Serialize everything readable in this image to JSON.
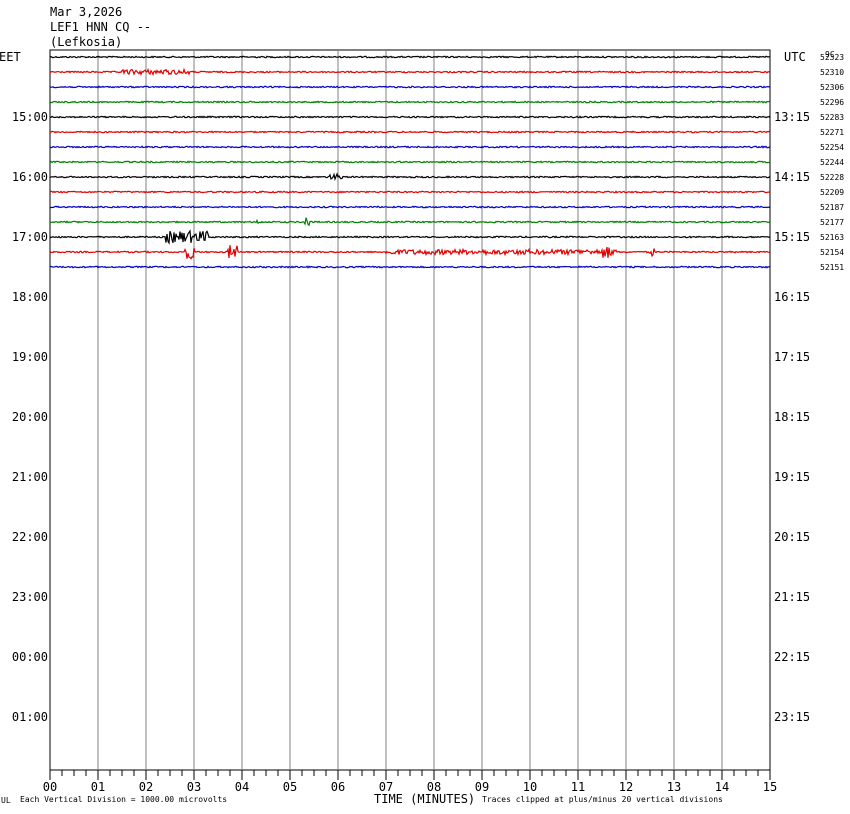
{
  "header": {
    "date": "Mar 3,2026",
    "station": "LEF1 HNN CQ --",
    "location": "(Lefkosia)"
  },
  "left_zone_label": "EET",
  "right_zone_label": "UTC",
  "corner_label": "9C",
  "footer": {
    "scale_note": "Each Vertical Division = 1000.00 microvolts",
    "axis_title": "TIME (MINUTES)",
    "clip_note": "Traces clipped at plus/minus 20 vertical divisions",
    "logo_mark": "UL"
  },
  "chart_data": {
    "type": "line",
    "title": "LEF1 HNN CQ --",
    "xlabel": "TIME (MINUTES)",
    "xlim": [
      0,
      15
    ],
    "x_ticks": [
      "00",
      "01",
      "02",
      "03",
      "04",
      "05",
      "06",
      "07",
      "08",
      "09",
      "10",
      "11",
      "12",
      "13",
      "14",
      "15"
    ],
    "left_hour_labels": [
      "15:00",
      "16:00",
      "17:00",
      "18:00",
      "19:00",
      "20:00",
      "21:00",
      "22:00",
      "23:00",
      "00:00",
      "01:00"
    ],
    "right_hour_labels": [
      "13:15",
      "14:15",
      "15:15",
      "16:15",
      "17:15",
      "18:15",
      "19:15",
      "20:15",
      "21:15",
      "22:15",
      "23:15"
    ],
    "trace_colors": [
      "#000000",
      "#e00000",
      "#0000c0",
      "#008000"
    ],
    "traces": [
      {
        "offset": "52323",
        "color": "#000000"
      },
      {
        "offset": "52310",
        "color": "#e00000"
      },
      {
        "offset": "52306",
        "color": "#0000c0"
      },
      {
        "offset": "52296",
        "color": "#008000"
      },
      {
        "offset": "52283",
        "color": "#000000"
      },
      {
        "offset": "52271",
        "color": "#e00000"
      },
      {
        "offset": "52254",
        "color": "#0000c0"
      },
      {
        "offset": "52244",
        "color": "#008000"
      },
      {
        "offset": "52228",
        "color": "#000000"
      },
      {
        "offset": "52209",
        "color": "#e00000"
      },
      {
        "offset": "52187",
        "color": "#0000c0"
      },
      {
        "offset": "52177",
        "color": "#008000"
      },
      {
        "offset": "52163",
        "color": "#000000"
      },
      {
        "offset": "52154",
        "color": "#e00000"
      },
      {
        "offset": "52151",
        "color": "#0000c0"
      }
    ]
  }
}
